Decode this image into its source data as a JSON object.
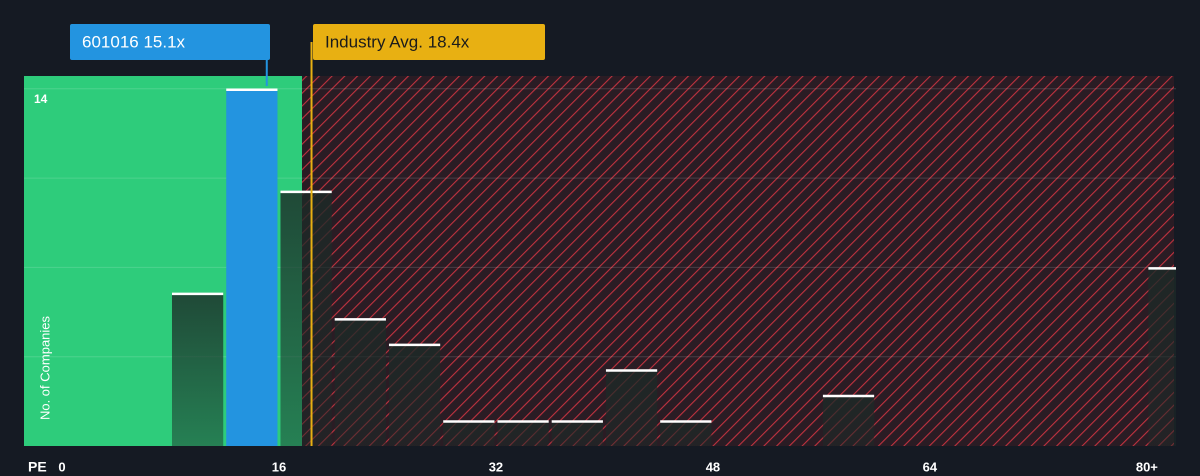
{
  "chart_data": {
    "type": "histogram",
    "x_label": "PE",
    "y_label": "No. of Companies",
    "bins": [
      8,
      12,
      16,
      20,
      24,
      28,
      32,
      36,
      40,
      44,
      48,
      52,
      56,
      60,
      64,
      68,
      72,
      76,
      80,
      84
    ],
    "counts": [
      6,
      14,
      10,
      5,
      4,
      1,
      1,
      1,
      3,
      1,
      0,
      0,
      2,
      0,
      0,
      0,
      0,
      0,
      7
    ],
    "highlight_bin": 1,
    "color": "#1f2e2b",
    "highlight_color": "#2394e0",
    "xlim": [
      0,
      82
    ],
    "xticks": [
      0,
      16,
      32,
      48,
      64,
      {
        "value": 80,
        "label": "80+"
      }
    ],
    "ylim": [
      0,
      14.5
    ],
    "yticks": [
      {
        "value": 3.5,
        "label": null
      },
      {
        "value": 7,
        "label": null
      },
      {
        "value": 10.5,
        "label": null
      },
      14
    ],
    "zones": [
      {
        "range": [
          0,
          17.7
        ],
        "color": "#2ecc7b"
      },
      {
        "range": [
          17.7,
          82
        ],
        "color": "#c0323f"
      }
    ],
    "annotations": [
      {
        "label": "601016 15.1x",
        "value": 15.1,
        "color": "#2394e0"
      },
      {
        "label": "Industry Avg. 18.4x",
        "value": 18.4,
        "color": "#e8b012"
      }
    ]
  }
}
